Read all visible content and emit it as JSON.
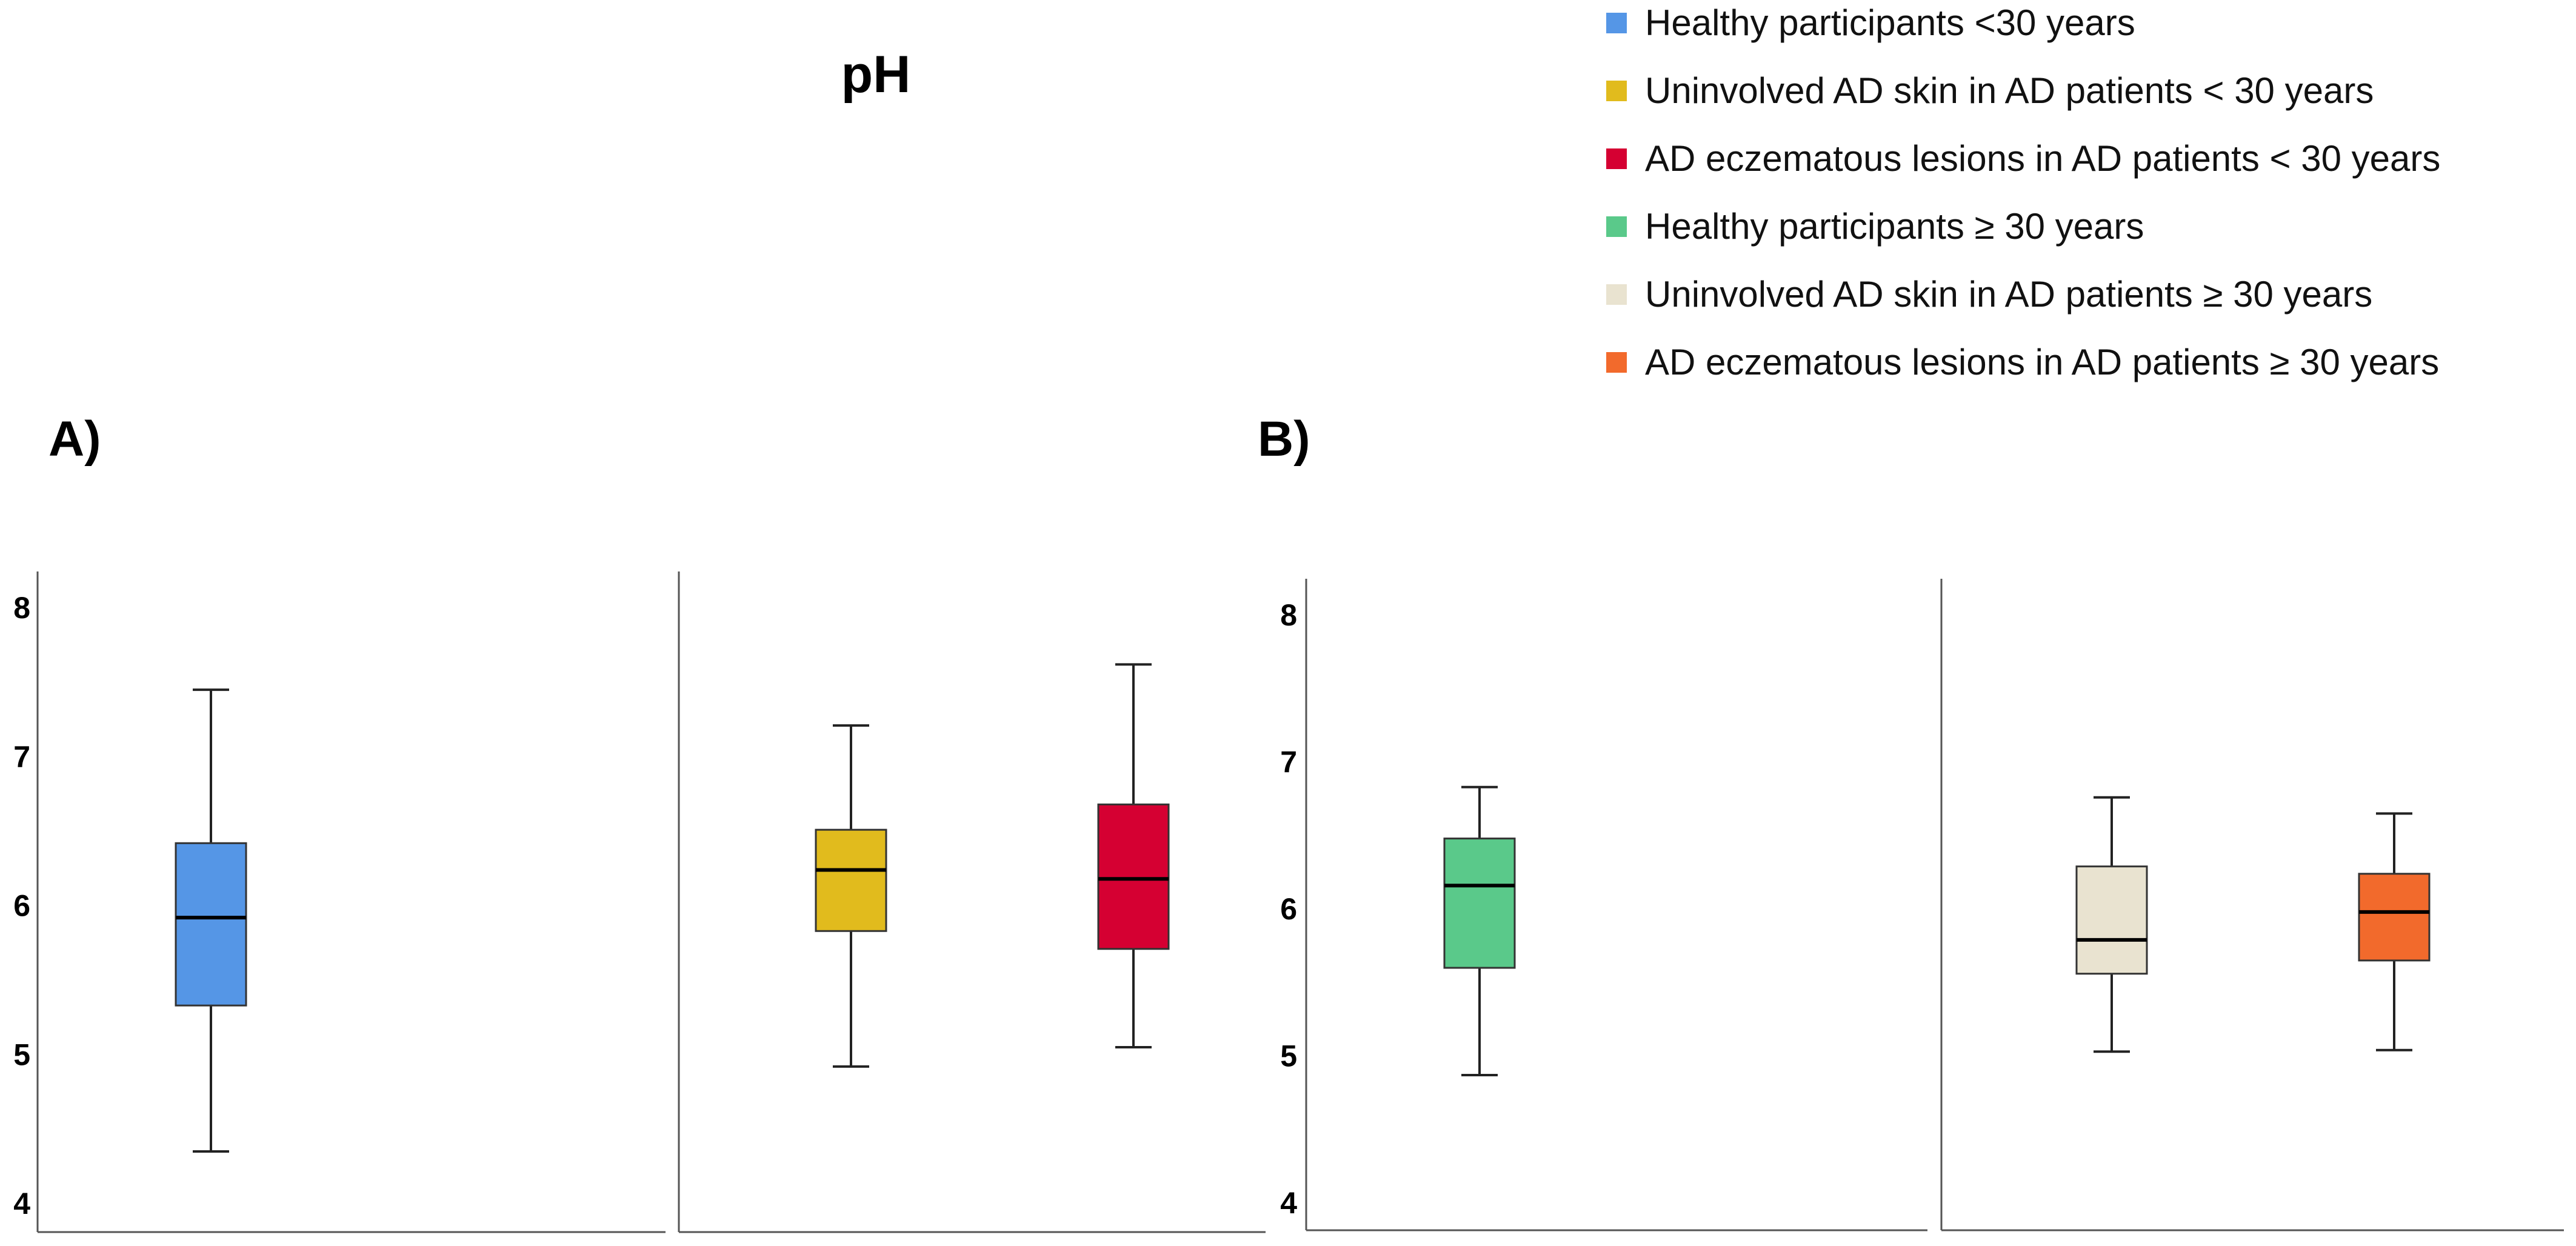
{
  "chart_data": {
    "type": "boxplot",
    "title": "pH",
    "ylim": [
      3.8,
      8.2
    ],
    "yticks": [
      4,
      5,
      6,
      7,
      8
    ],
    "legend": {
      "placement": "top-right",
      "items": [
        {
          "label": "Healthy participants <30 years",
          "color": "#5596e6"
        },
        {
          "label": "Uninvolved AD skin in AD patients < 30 years",
          "color": "#e1bb1d"
        },
        {
          "label": "AD eczematous lesions in AD patients < 30 years",
          "color": "#d50032"
        },
        {
          "label": "Healthy participants  ≥ 30 years",
          "color": "#5ac98a"
        },
        {
          "label": "Uninvolved AD skin in AD patients  ≥ 30 years",
          "color": "#e9e3d0"
        },
        {
          "label": "AD eczematous lesions in AD patients  ≥ 30 years",
          "color": "#f26a2c"
        }
      ]
    },
    "panels": [
      {
        "label": "A)",
        "groups": [
          {
            "boxes": [
              {
                "name": "Healthy participants <30 years",
                "color": "#5596e6",
                "whisker_low": 4.35,
                "q1": 5.33,
                "median": 5.92,
                "q3": 6.42,
                "whisker_high": 7.45
              }
            ]
          },
          {
            "boxes": [
              {
                "name": "Uninvolved AD skin in AD patients < 30 years",
                "color": "#e1bb1d",
                "whisker_low": 4.92,
                "q1": 5.83,
                "median": 6.24,
                "q3": 6.51,
                "whisker_high": 7.21
              },
              {
                "name": "AD eczematous lesions in AD patients < 30 years",
                "color": "#d50032",
                "whisker_low": 5.05,
                "q1": 5.71,
                "median": 6.18,
                "q3": 6.68,
                "whisker_high": 7.62
              }
            ]
          }
        ]
      },
      {
        "label": "B)",
        "groups": [
          {
            "boxes": [
              {
                "name": "Healthy participants  ≥ 30 years",
                "color": "#5ac98a",
                "whisker_low": 4.87,
                "q1": 5.6,
                "median": 6.16,
                "q3": 6.48,
                "whisker_high": 6.83
              }
            ]
          },
          {
            "boxes": [
              {
                "name": "Uninvolved AD skin in AD patients  ≥ 30 years",
                "color": "#e9e3d0",
                "whisker_low": 5.03,
                "q1": 5.56,
                "median": 5.79,
                "q3": 6.29,
                "whisker_high": 6.76
              },
              {
                "name": "AD eczematous lesions in AD patients  ≥ 30 years",
                "color": "#f26a2c",
                "whisker_low": 5.04,
                "q1": 5.65,
                "median": 5.98,
                "q3": 6.24,
                "whisker_high": 6.65
              }
            ]
          }
        ]
      }
    ]
  }
}
